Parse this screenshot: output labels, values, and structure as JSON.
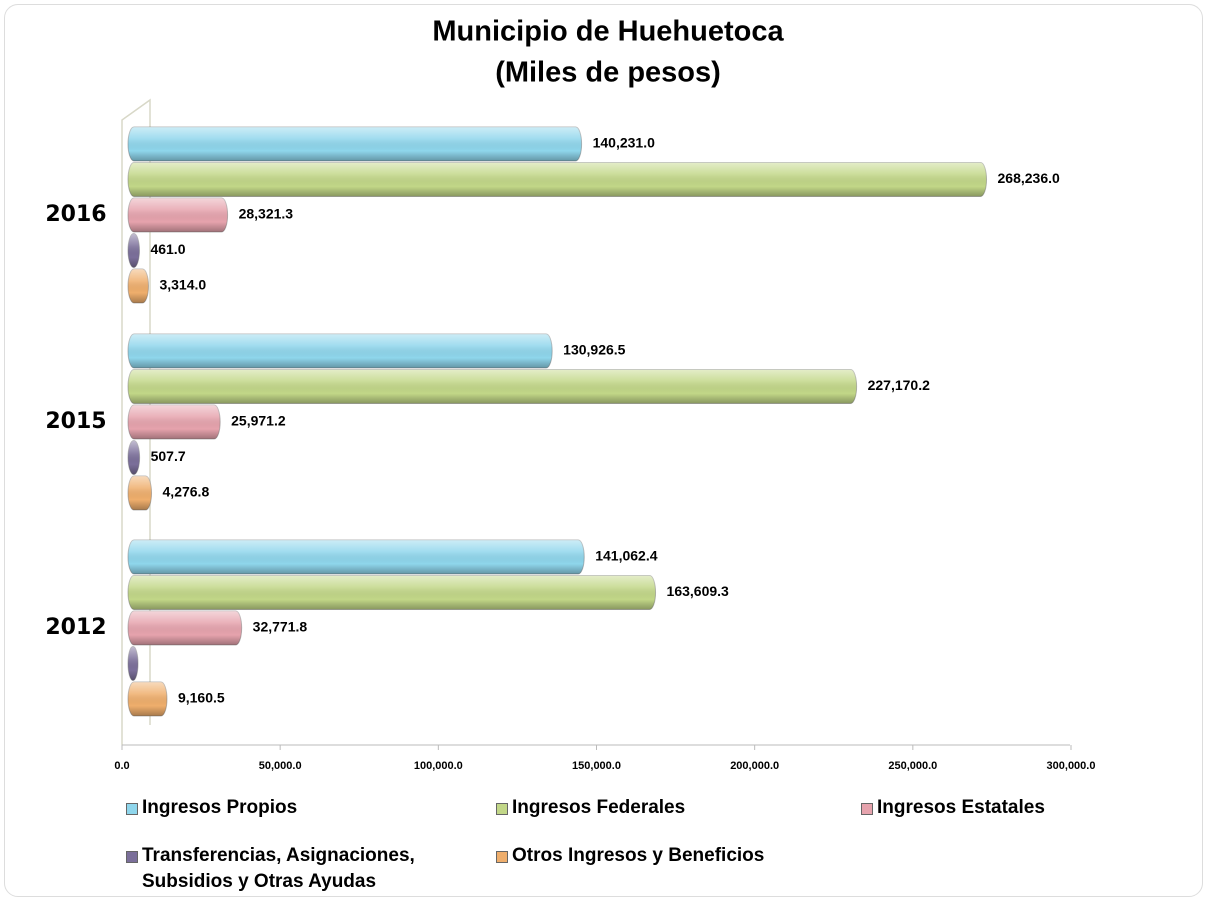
{
  "chart_data": {
    "type": "bar",
    "orientation": "horizontal",
    "title": "Municipio de Huehuetoca",
    "subtitle": "(Miles de pesos)",
    "categories": [
      "2016",
      "2015",
      "2012"
    ],
    "series": [
      {
        "name": "Ingresos Propios",
        "color": "#8fd6ec",
        "values": [
          140231.0,
          130926.5,
          141062.4
        ],
        "value_labels": [
          "140,231.0",
          "130,926.5",
          "141,062.4"
        ]
      },
      {
        "name": "Ingresos Federales",
        "color": "#c2d788",
        "values": [
          268236.0,
          227170.2,
          163609.3
        ],
        "value_labels": [
          "268,236.0",
          "227,170.2",
          "163,609.3"
        ]
      },
      {
        "name": "Ingresos Estatales",
        "color": "#e6a3ad",
        "values": [
          28321.3,
          25971.2,
          32771.8
        ],
        "value_labels": [
          "28,321.3",
          "25,971.2",
          "32,771.8"
        ]
      },
      {
        "name": "Transferencias, Asignaciones, Subsidios y Otras Ayudas",
        "color": "#7b6f9a",
        "values": [
          461.0,
          507.7,
          0
        ],
        "value_labels": [
          "461.0",
          "507.7",
          null
        ]
      },
      {
        "name": "Otros Ingresos y Beneficios",
        "color": "#efae6c",
        "values": [
          3314.0,
          4276.8,
          9160.5
        ],
        "value_labels": [
          "3,314.0",
          "4,276.8",
          "9,160.5"
        ]
      }
    ],
    "xlim": [
      0,
      300000
    ],
    "xticks": [
      {
        "value": 0,
        "label": "0.0"
      },
      {
        "value": 50000,
        "label": "50,000.0"
      },
      {
        "value": 100000,
        "label": "100,000.0"
      },
      {
        "value": 150000,
        "label": "150,000.0"
      },
      {
        "value": 200000,
        "label": "200,000.0"
      },
      {
        "value": 250000,
        "label": "250,000.0"
      },
      {
        "value": 300000,
        "label": "300,000.0"
      }
    ],
    "legend": "bottom"
  }
}
